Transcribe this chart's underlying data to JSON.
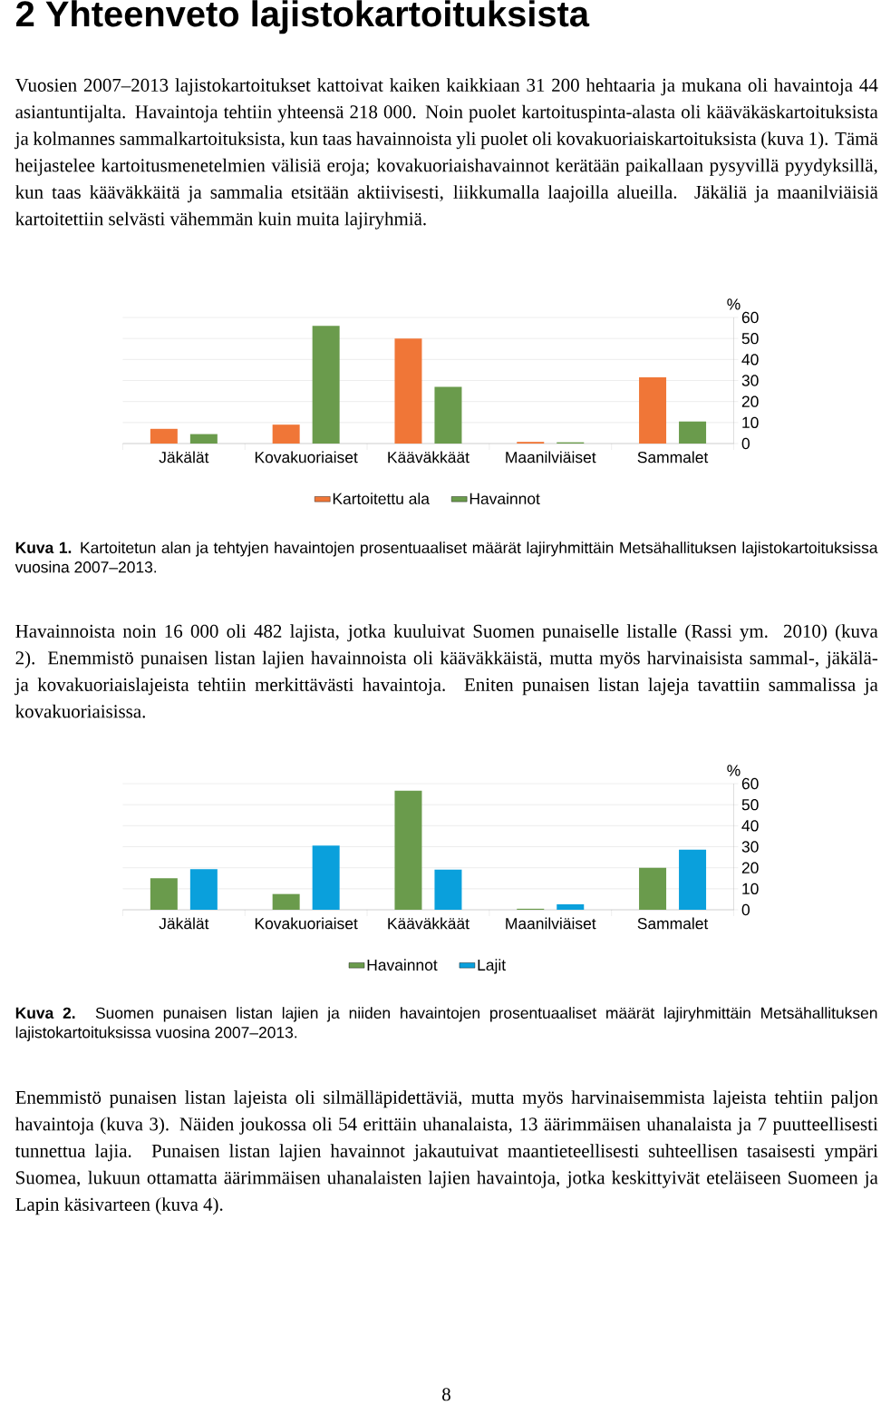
{
  "chart_data": [
    {
      "type": "bar",
      "title": "2 Yhteenveto lajistokartoituksista",
      "annotations": [
        "Vuosien 2007–2013 lajistokartoitukset kattoivat kaiken kaikkiaan 31 200 hehtaaria ja mukana oli havaintoja 44 asiantuntijalta. Havaintoja tehtiin yhteensä 218 000. Noin puolet kartoituspinta-alasta oli kääväkäskartoituksista ja kolmannes sammalkartoituksista, kun taas havainnoista yli puolet oli kovakuoriaiskartoituksista (kuva 1). Tämä heijastelee kartoitusmenetelmien välisiä eroja; kovakuoriaishavainnot kerätään paikallaan pysyvillä pyydyksillä, kun taas kääväkkäitä ja sammalia etsitään aktiivisesti, liikkumalla laajoilla alueilla. Jäkäliä ja maanilviäisiä kartoitettiin selvästi vähemmän kuin muita lajiryhmiä.",
        "**Kuva 1.** Kartoitetun alan ja tehtyjen havaintojen prosentuaaliset määrät lajiryhmittäin Metsähallituksen lajistokartoituksissa vuosina 2007–2013."
      ],
      "categories": [
        "Jäkälät",
        "Kovakuoriaiset",
        "Kääväkkäät",
        "Maanilviäiset",
        "Sammalet"
      ],
      "series": [
        {
          "name": "Kartoitettu ala",
          "color": "#f07637",
          "values": [
            7,
            9,
            50,
            0.8,
            31.5
          ]
        },
        {
          "name": "Havainnot",
          "color": "#6a9b4c",
          "values": [
            4.5,
            56,
            27,
            0.6,
            10.5
          ]
        }
      ],
      "ylabel": "%",
      "ylim": [
        0,
        60
      ],
      "yticks": [
        0,
        10,
        20,
        30,
        40,
        50,
        60
      ],
      "grid": "y",
      "legend": "bottom"
    },
    {
      "type": "bar",
      "annotations": [
        "Havainnoista noin 16 000 oli 482 lajista, jotka kuuluivat Suomen punaiselle listalle (Rassi ym. 2010) (kuva 2). Enemmistö punaisen listan lajien havainnoista oli kääväkkäistä, mutta myös harvinaisista sammal-, jäkälä- ja kovakuoriaislajeista tehtiin merkittävästi havaintoja. Eniten punaisen listan lajeja tavattiin sammalissa ja kovakuoriaisissa.",
        "**Kuva 2.** Suomen punaisen listan lajien ja niiden havaintojen prosentuaaliset määrät lajiryhmittäin Metsähallituksen lajistokartoituksissa vuosina 2007–2013.",
        "Enemmistö punaisen listan lajeista oli silmälläpidettäviä, mutta myös harvinaisemmista lajeista tehtiin paljon havaintoja (kuva 3). Näiden joukossa oli 54 erittäin uhanalaista, 13 äärimmäisen uhanalaista ja 7 puutteellisesti tunnettua lajia. Punaisen listan lajien havainnot jakautuivat maantieteellisesti suhteellisen tasaisesti ympäri Suomea, lukuun ottamatta äärimmäisen uhanalaisten lajien havaintoja, jotka keskittyivät eteläiseen Suomeen ja Lapin käsivarteen (kuva 4).",
        "8"
      ],
      "categories": [
        "Jäkälät",
        "Kovakuoriaiset",
        "Kääväkkäät",
        "Maanilviäiset",
        "Sammalet"
      ],
      "series": [
        {
          "name": "Havainnot",
          "color": "#6a9b4c",
          "values": [
            15,
            7.5,
            56.7,
            0.5,
            20
          ]
        },
        {
          "name": "Lajit",
          "color": "#0aa0dc",
          "values": [
            19.3,
            30.6,
            19.1,
            2.6,
            28.6
          ]
        }
      ],
      "ylabel": "%",
      "ylim": [
        0,
        60
      ],
      "yticks": [
        0,
        10,
        20,
        30,
        40,
        50,
        60
      ],
      "grid": "y",
      "legend": "bottom"
    }
  ]
}
